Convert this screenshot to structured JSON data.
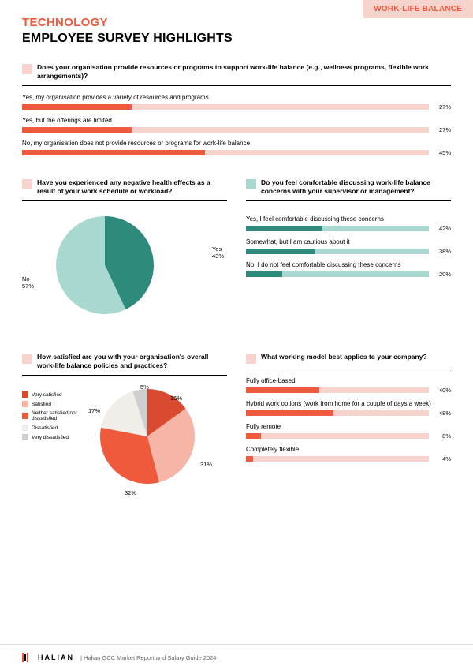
{
  "colors": {
    "accent": "#f05a3c",
    "accent_light": "#f7d3cd",
    "teal_dark": "#2e8b7c",
    "teal_light": "#a8d8cf",
    "pie2_c1": "#d94a30",
    "pie2_c2": "#f7b5a8",
    "pie2_c3": "#f05a3c",
    "pie2_c4": "#f1ede8",
    "pie2_c5": "#cfcfcf",
    "tag_bg": "#f7d3cd",
    "tag_text": "#f05a3c",
    "footer_border": "#dddddd"
  },
  "header": {
    "sector": "TECHNOLOGY",
    "title": "EMPLOYEE SURVEY HIGHLIGHTS",
    "tag": "WORK-LIFE BALANCE"
  },
  "q1": {
    "question": "Does your organisation provide resources or programs to support work-life balance (e.g., wellness programs, flexible work arrangements)?",
    "box_color": "#f7d3cd",
    "track_color": "#f7d3cd",
    "fill_color": "#f05a3c",
    "items": [
      {
        "label": "Yes, my organisation provides a variety of resources and programs",
        "pct": 27
      },
      {
        "label": "Yes, but the offerings are limited",
        "pct": 27
      },
      {
        "label": "No, my organisation does not provide resources or programs for work-life balance",
        "pct": 45
      }
    ]
  },
  "q2": {
    "question": "Have you experienced any negative health effects as a result of your work schedule or workload?",
    "box_color": "#f7d3cd",
    "type": "pie",
    "radius": 64,
    "slices": [
      {
        "label": "Yes",
        "value": 43,
        "color": "#2e8b7c"
      },
      {
        "label": "No",
        "value": 57,
        "color": "#a8d8cf"
      }
    ],
    "label_yes": "Yes\n43%",
    "label_no": "No\n57%"
  },
  "q3": {
    "question": "Do you feel comfortable discussing work-life balance concerns with your supervisor or management?",
    "box_color": "#a8d8cf",
    "track_color": "#a8d8cf",
    "fill_color": "#2e8b7c",
    "items": [
      {
        "label": "Yes, I feel comfortable discussing these concerns",
        "pct": 42
      },
      {
        "label": "Somewhat, but I am cautious about it",
        "pct": 38
      },
      {
        "label": "No, I do not feel comfortable discussing these concerns",
        "pct": 20
      }
    ]
  },
  "q4": {
    "question": "How satisfied are you with your organisation's overall work-life balance policies and practices?",
    "box_color": "#f7d3cd",
    "type": "pie",
    "radius": 62,
    "slices": [
      {
        "label": "Very satisfied",
        "value": 15,
        "color": "#d94a30"
      },
      {
        "label": "Satisfied",
        "value": 31,
        "color": "#f7b5a8"
      },
      {
        "label": "Neither satisfied nor dissatisfied",
        "value": 32,
        "color": "#f05a3c"
      },
      {
        "label": "Dissatisfied",
        "value": 17,
        "color": "#f1ede8"
      },
      {
        "label": "Very dissatisfied",
        "value": 5,
        "color": "#cfcfcf"
      }
    ],
    "legend": [
      {
        "label": "Very satisfied",
        "color": "#d94a30"
      },
      {
        "label": "Satisfied",
        "color": "#f7b5a8"
      },
      {
        "label": "Neither satisfied nor dissatisfied",
        "color": "#f05a3c"
      },
      {
        "label": "Dissatisfied",
        "color": "#f1ede8"
      },
      {
        "label": "Very dissatisfied",
        "color": "#cfcfcf"
      }
    ]
  },
  "q5": {
    "question": "What working model best applies to your company?",
    "box_color": "#f7d3cd",
    "track_color": "#f7d3cd",
    "fill_color": "#f05a3c",
    "items": [
      {
        "label": "Fully office-based",
        "pct": 40
      },
      {
        "label": "Hybrid work options (work from home for a couple of days a week)",
        "pct": 48
      },
      {
        "label": "Fully remote",
        "pct": 8
      },
      {
        "label": "Completely flexible",
        "pct": 4
      }
    ]
  },
  "footer": {
    "brand": "HALIAN",
    "sub": "|  Halian GCC Market Report and Salary Guide 2024"
  }
}
